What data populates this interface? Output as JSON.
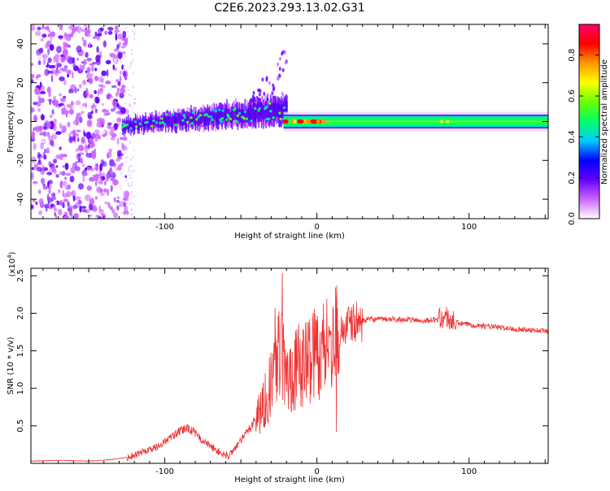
{
  "title": "C2E6.2023.293.13.02.G31",
  "colors": {
    "snr_line": "#ee3333",
    "axis": "#000000",
    "background": "#ffffff"
  },
  "colorbar": {
    "label": "Normalized spectral amplitude",
    "ticks": [
      "0.0",
      "0.2",
      "0.4",
      "0.6",
      "0.8"
    ],
    "range": [
      0.0,
      0.95
    ],
    "colors": [
      "#ffffff",
      "#cc66ff",
      "#6600ff",
      "#0000ff",
      "#00ccff",
      "#00ff66",
      "#66ff00",
      "#ffff00",
      "#ff9900",
      "#ff0000",
      "#ff0066"
    ]
  },
  "chart_data": [
    {
      "type": "heatmap",
      "title": "",
      "xlabel": "Height of straight line (km)",
      "ylabel": "Frequency (Hz)",
      "xlim": [
        -188,
        152
      ],
      "ylim": [
        -50,
        50
      ],
      "xticks": [
        -100,
        0,
        100
      ],
      "yticks": [
        -40,
        -20,
        0,
        20,
        40
      ],
      "xtick_labels": [
        "-100",
        "0",
        "100"
      ],
      "ytick_labels": [
        "-40",
        "-20",
        "0",
        "20",
        "40"
      ],
      "regions": [
        {
          "x": [
            -188,
            -125
          ],
          "freq_range": [
            -50,
            50
          ],
          "amplitude": 0.1
        },
        {
          "x": [
            -128,
            -20
          ],
          "freq_range": [
            -8,
            10
          ],
          "amplitude": 0.35
        },
        {
          "x": [
            -45,
            -20
          ],
          "freq_range": [
            5,
            35
          ],
          "amplitude": 0.15
        },
        {
          "x": [
            -22,
            152
          ],
          "freq_range": [
            -2.5,
            2.5
          ],
          "amplitude": 0.45
        },
        {
          "x": [
            -22,
            10
          ],
          "freq_range": [
            -1,
            1
          ],
          "amplitude": 0.85
        }
      ]
    },
    {
      "type": "line",
      "title": "",
      "xlabel": "Height of straight line (km)",
      "ylabel": "SNR (10 * v/v)",
      "y_multiplier": "(x10^4)",
      "xlim": [
        -188,
        152
      ],
      "ylim": [
        0,
        2.6
      ],
      "xticks": [
        -100,
        0,
        100
      ],
      "yticks": [
        0.5,
        1.0,
        1.5,
        2.0,
        2.5
      ],
      "xtick_labels": [
        "-100",
        "0",
        "100"
      ],
      "ytick_labels": [
        "0.5",
        "1.0",
        "1.5",
        "2.0",
        "2.5"
      ],
      "series": [
        {
          "x": [
            -188,
            -170,
            -150,
            -135,
            -125,
            -115,
            -105,
            -98,
            -92,
            -85,
            -80,
            -75,
            -68,
            -62,
            -58,
            -55,
            -50,
            -45,
            -40,
            -35,
            -30,
            -27,
            -25,
            -22,
            -20,
            -17,
            -15,
            -12,
            -10,
            -7,
            -5,
            -3,
            0,
            2,
            5,
            8,
            10,
            12,
            14,
            18,
            22,
            26,
            30,
            35,
            45,
            55,
            70,
            80,
            85,
            88,
            90,
            95,
            100,
            110,
            120,
            130,
            140,
            152
          ],
          "y": [
            0.03,
            0.04,
            0.03,
            0.05,
            0.08,
            0.15,
            0.22,
            0.32,
            0.4,
            0.48,
            0.4,
            0.3,
            0.2,
            0.12,
            0.1,
            0.18,
            0.3,
            0.45,
            0.6,
            0.8,
            1.05,
            1.3,
            1.6,
            1.35,
            1.1,
            1.2,
            1.25,
            1.3,
            1.3,
            1.35,
            1.4,
            1.5,
            1.5,
            1.5,
            1.55,
            1.7,
            1.65,
            1.75,
            1.75,
            1.8,
            1.85,
            1.88,
            1.9,
            1.92,
            1.92,
            1.92,
            1.9,
            1.92,
            1.95,
            1.9,
            1.88,
            1.86,
            1.85,
            1.83,
            1.81,
            1.79,
            1.78,
            1.76
          ]
        }
      ]
    }
  ]
}
